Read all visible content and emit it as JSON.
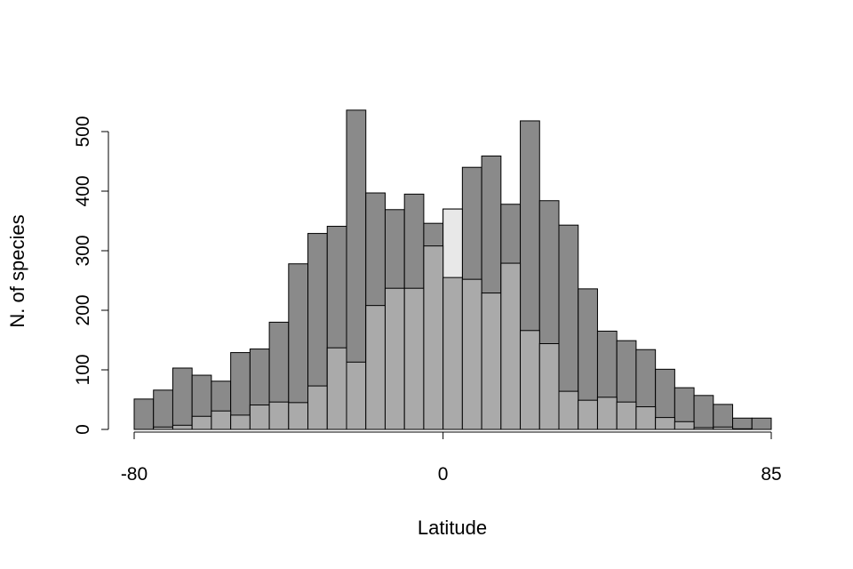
{
  "chart_data": {
    "type": "bar",
    "title": "",
    "xlabel": "Latitude",
    "ylabel": "N. of species",
    "xlim": [
      -80,
      85
    ],
    "ylim": [
      0,
      500
    ],
    "x_ticks": [
      -80,
      0,
      85
    ],
    "x_tick_labels": [
      "-80",
      "0",
      "85"
    ],
    "y_ticks": [
      0,
      100,
      200,
      300,
      400,
      500
    ],
    "y_tick_labels": [
      "0",
      "100",
      "200",
      "300",
      "400",
      "500"
    ],
    "bin_edges": [
      -80,
      -75,
      -70,
      -65,
      -60,
      -55,
      -50,
      -45,
      -40,
      -35,
      -30,
      -25,
      -20,
      -15,
      -10,
      -5,
      0,
      5,
      10,
      15,
      20,
      25,
      30,
      35,
      40,
      45,
      50,
      55,
      60,
      65,
      70,
      75,
      80,
      85
    ],
    "grid": false,
    "legend": "none",
    "series": [
      {
        "color": "#8a8a8a",
        "values": [
          51,
          66,
          103,
          91,
          81,
          129,
          135,
          180,
          278,
          329,
          341,
          536,
          397,
          369,
          395,
          346,
          370,
          440,
          459,
          378,
          518,
          384,
          343,
          236,
          165,
          149,
          134,
          101,
          70,
          57,
          42,
          19,
          19
        ]
      },
      {
        "color": "#e8e8e8",
        "values": [
          0,
          0,
          0,
          0,
          0,
          0,
          0,
          0,
          0,
          0,
          0,
          0,
          0,
          0,
          0,
          0,
          370,
          0,
          0,
          0,
          0,
          0,
          0,
          0,
          0,
          0,
          0,
          0,
          0,
          0,
          0,
          0,
          0
        ]
      },
      {
        "color": "#aaaaaa",
        "values": [
          0,
          4,
          7,
          22,
          31,
          24,
          41,
          46,
          45,
          73,
          137,
          113,
          208,
          237,
          237,
          308,
          255,
          252,
          229,
          279,
          166,
          144,
          64,
          49,
          54,
          46,
          38,
          20,
          13,
          3,
          4,
          1,
          0
        ]
      }
    ]
  }
}
